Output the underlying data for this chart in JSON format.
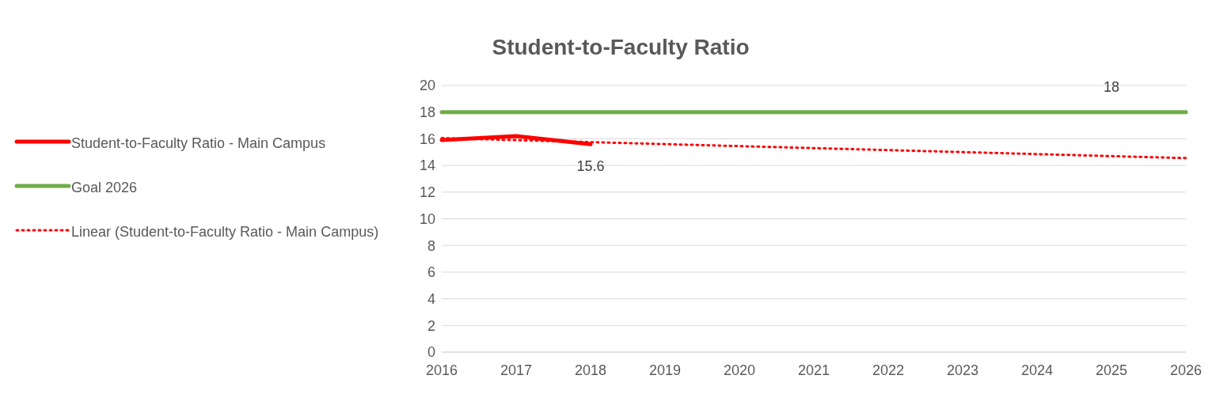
{
  "chart_data": {
    "type": "line",
    "title": "Student-to-Faculty Ratio",
    "categories": [
      "2016",
      "2017",
      "2018",
      "2019",
      "2020",
      "2021",
      "2022",
      "2023",
      "2024",
      "2025",
      "2026"
    ],
    "series": [
      {
        "name": "Student-to-Faculty Ratio - Main Campus",
        "color": "#ff0000",
        "values": [
          15.9,
          16.2,
          15.6,
          null,
          null,
          null,
          null,
          null,
          null,
          null,
          null
        ],
        "value_labels": [
          null,
          null,
          "15.6",
          null,
          null,
          null,
          null,
          null,
          null,
          null,
          null
        ]
      },
      {
        "name": "Goal 2026",
        "color": "#70ad47",
        "values": [
          18,
          18,
          18,
          18,
          18,
          18,
          18,
          18,
          18,
          18,
          18
        ],
        "value_labels": [
          null,
          null,
          null,
          null,
          null,
          null,
          null,
          null,
          null,
          "18",
          null
        ]
      },
      {
        "name": "Linear (Student-to-Faculty Ratio - Main Campus)",
        "color": "#ff0000",
        "line_style": "dotted",
        "values": [
          16.05,
          15.9,
          15.75,
          15.6,
          15.45,
          15.3,
          15.15,
          15.0,
          14.85,
          14.7,
          14.55
        ]
      }
    ],
    "ylim": [
      0,
      20
    ],
    "yticks": [
      0,
      2,
      4,
      6,
      8,
      10,
      12,
      14,
      16,
      18,
      20
    ],
    "grid": "y",
    "legend": "left",
    "marker": "none",
    "line_style": "solid"
  }
}
